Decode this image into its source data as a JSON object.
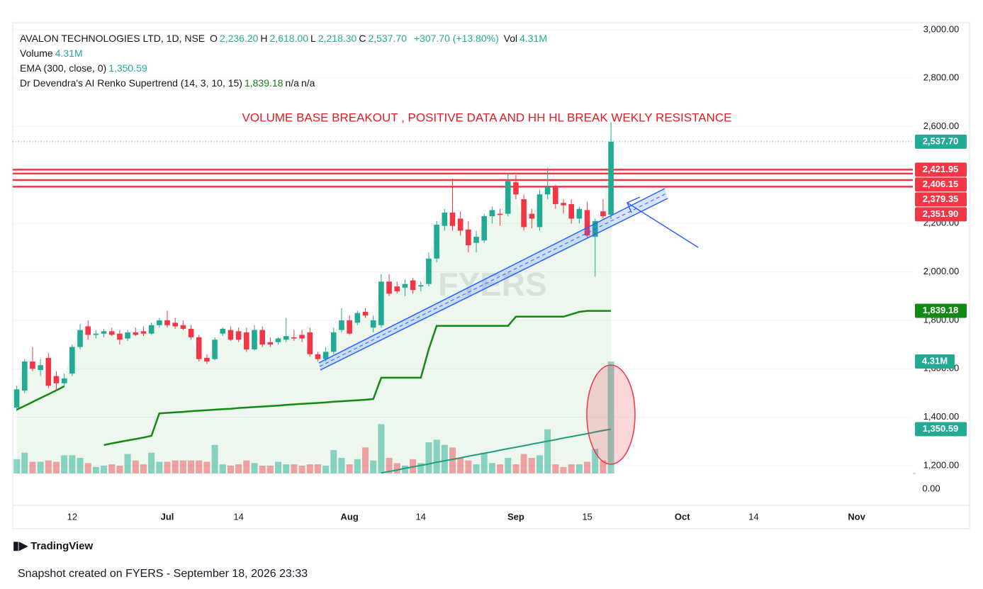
{
  "chart_data": {
    "type": "candlestick",
    "annotation": "VOLUME BASE BREAKOUT , POSITIVE DATA AND HH HL BREAK WEKLY RESISTANCE",
    "watermark": "FYERS",
    "legend": {
      "symbol": "AVALON TECHNOLOGIES LTD, 1D, NSE",
      "ohlc": [
        {
          "key": "O",
          "value": "2,236.20"
        },
        {
          "key": "H",
          "value": "2,618.00"
        },
        {
          "key": "L",
          "value": "2,218.30"
        },
        {
          "key": "C",
          "value": "2,537.70"
        }
      ],
      "change": "+307.70 (+13.80%)",
      "vol_key": "Vol",
      "vol": "4.31M",
      "indicators": [
        {
          "name": "Volume",
          "value": "4.31M",
          "color": "#22ab94"
        },
        {
          "name": "EMA (300, close, 0)",
          "value": "1,350.59",
          "color": "#22ab94"
        },
        {
          "name": "Dr Devendra's AI Renko Supertrend (14, 3, 10, 15)",
          "value": "1,839.18",
          "color": "#1b7a1b",
          "extra": [
            "n/a",
            "n/a"
          ]
        }
      ]
    },
    "categories": [
      null,
      null,
      null,
      null,
      null,
      null,
      null,
      "12",
      null,
      null,
      null,
      null,
      null,
      null,
      null,
      null,
      null,
      null,
      null,
      "Jul",
      null,
      null,
      null,
      null,
      null,
      null,
      null,
      null,
      "14",
      null,
      null,
      null,
      null,
      null,
      null,
      null,
      null,
      null,
      null,
      null,
      null,
      null,
      "Aug",
      null,
      null,
      null,
      null,
      null,
      null,
      null,
      null,
      "14",
      null,
      null,
      null,
      null,
      null,
      null,
      null,
      null,
      null,
      null,
      null,
      "Sep",
      null,
      null,
      null,
      null,
      null,
      null,
      null,
      null,
      "15",
      null,
      null,
      null,
      null,
      null,
      null,
      null,
      null,
      null,
      null,
      null,
      "Oct",
      null,
      null,
      null,
      null,
      null,
      null,
      null,
      null,
      "14",
      null,
      null,
      null,
      null,
      null,
      null,
      null,
      null,
      null,
      null,
      null,
      null,
      "Nov"
    ],
    "open": [
      1440,
      1510,
      1630,
      1595,
      1645,
      1570,
      1540,
      1580,
      1690,
      1775,
      1740,
      1745,
      1755,
      1745,
      1725,
      1750,
      1755,
      1745,
      1780,
      1800,
      1790,
      1780,
      1765,
      1730,
      1645,
      1640,
      1745,
      1760,
      1755,
      1750,
      1680,
      1760,
      1710,
      1710,
      1720,
      1730,
      1740,
      1750,
      1660,
      1640,
      1670,
      1760,
      1800,
      1790,
      1835,
      1770,
      1780,
      1960,
      1940,
      1935,
      1965,
      1940,
      1950,
      2055,
      2190,
      2245,
      2220,
      2175,
      2120,
      2130,
      2230,
      2240,
      2240,
      2370,
      2300,
      2240,
      2185,
      2320,
      2350,
      2285,
      2280,
      2220,
      2255,
      2145,
      2250,
      2236.2,
      null,
      null,
      null,
      null,
      null,
      null,
      null,
      null,
      null,
      null,
      null,
      null,
      null,
      null,
      null,
      null,
      null,
      null,
      null,
      null,
      null,
      null,
      null,
      null,
      null,
      null,
      null,
      null,
      null,
      null,
      null
    ],
    "high": [
      1530,
      1640,
      1690,
      1640,
      1665,
      1590,
      1580,
      1700,
      1785,
      1800,
      1760,
      1765,
      1770,
      1760,
      1760,
      1770,
      1775,
      1790,
      1810,
      1840,
      1810,
      1800,
      1780,
      1740,
      1660,
      1730,
      1770,
      1775,
      1770,
      1770,
      1780,
      1775,
      1730,
      1730,
      1810,
      1760,
      1760,
      1770,
      1670,
      1690,
      1770,
      1850,
      1820,
      1840,
      1850,
      1820,
      1990,
      1990,
      1960,
      1970,
      1975,
      1960,
      2080,
      2210,
      2260,
      2385,
      2250,
      2210,
      2170,
      2240,
      2270,
      2260,
      2410,
      2400,
      2320,
      2260,
      2340,
      2430,
      2360,
      2300,
      2300,
      2270,
      2290,
      2220,
      2300,
      2618,
      null,
      null,
      null,
      null,
      null,
      null,
      null,
      null,
      null,
      null,
      null,
      null,
      null,
      null,
      null,
      null,
      null,
      null,
      null,
      null,
      null,
      null,
      null,
      null,
      null,
      null,
      null,
      null,
      null,
      null,
      null
    ],
    "low": [
      1425,
      1500,
      1590,
      1570,
      1520,
      1510,
      1530,
      1570,
      1680,
      1720,
      1725,
      1730,
      1735,
      1700,
      1715,
      1735,
      1735,
      1740,
      1770,
      1770,
      1765,
      1760,
      1720,
      1630,
      1620,
      1635,
      1735,
      1715,
      1710,
      1670,
      1675,
      1690,
      1690,
      1700,
      1710,
      1715,
      1710,
      1650,
      1630,
      1630,
      1660,
      1750,
      1740,
      1780,
      1810,
      1750,
      1770,
      1900,
      1910,
      1900,
      1910,
      1920,
      1940,
      2040,
      2170,
      2170,
      2150,
      2080,
      2080,
      2120,
      2200,
      2190,
      2230,
      2300,
      2170,
      2180,
      2170,
      2300,
      2260,
      2240,
      2200,
      2200,
      2140,
      1980,
      2220,
      2218.3,
      null,
      null,
      null,
      null,
      null,
      null,
      null,
      null,
      null,
      null,
      null,
      null,
      null,
      null,
      null,
      null,
      null,
      null,
      null,
      null,
      null,
      null,
      null,
      null,
      null,
      null,
      null,
      null,
      null,
      null,
      null
    ],
    "close": [
      1515,
      1630,
      1600,
      1615,
      1530,
      1540,
      1560,
      1690,
      1760,
      1740,
      1745,
      1755,
      1740,
      1720,
      1750,
      1740,
      1745,
      1780,
      1800,
      1780,
      1775,
      1765,
      1730,
      1640,
      1630,
      1720,
      1765,
      1720,
      1720,
      1680,
      1760,
      1700,
      1700,
      1725,
      1735,
      1725,
      1725,
      1660,
      1640,
      1670,
      1750,
      1800,
      1745,
      1830,
      1820,
      1800,
      1960,
      1910,
      1920,
      1950,
      1925,
      1945,
      2055,
      2195,
      2245,
      2190,
      2170,
      2110,
      2145,
      2230,
      2255,
      2235,
      2375,
      2320,
      2185,
      2220,
      2320,
      2350,
      2280,
      2275,
      2220,
      2260,
      2150,
      2210,
      2230,
      2537.7,
      null,
      null,
      null,
      null,
      null,
      null,
      null,
      null,
      null,
      null,
      null,
      null,
      null,
      null,
      null,
      null,
      null,
      null,
      null,
      null,
      null,
      null,
      null,
      null,
      null,
      null,
      null,
      null,
      null,
      null,
      null
    ],
    "volume": [
      550000,
      800000,
      450000,
      450000,
      500000,
      450000,
      700000,
      700000,
      600000,
      400000,
      250000,
      300000,
      350000,
      300000,
      750000,
      500000,
      350000,
      800000,
      450000,
      450000,
      500000,
      500000,
      500000,
      500000,
      450000,
      1100000,
      350000,
      300000,
      350000,
      500000,
      400000,
      300000,
      300000,
      450000,
      350000,
      350000,
      300000,
      350000,
      350000,
      300000,
      900000,
      600000,
      350000,
      550000,
      1000000,
      500000,
      1900000,
      600000,
      400000,
      300000,
      550000,
      400000,
      1200000,
      1300000,
      1100000,
      1000000,
      600000,
      500000,
      350000,
      800000,
      400000,
      350000,
      600000,
      350000,
      750000,
      600000,
      700000,
      1700000,
      350000,
      250000,
      350000,
      350000,
      450000,
      950000,
      500000,
      4310000,
      null,
      null,
      null,
      null,
      null,
      null,
      null,
      null,
      null,
      null,
      null,
      null,
      null,
      null,
      null,
      null,
      null,
      null,
      null,
      null,
      null,
      null,
      null,
      null,
      null,
      null,
      null,
      null,
      null,
      null,
      null
    ],
    "ema": [
      null,
      null,
      null,
      null,
      null,
      null,
      null,
      null,
      null,
      null,
      null,
      null,
      null,
      null,
      null,
      null,
      null,
      null,
      null,
      null,
      null,
      null,
      null,
      null,
      null,
      null,
      null,
      null,
      null,
      null,
      null,
      null,
      null,
      null,
      null,
      null,
      null,
      null,
      null,
      null,
      null,
      null,
      null,
      null,
      null,
      null,
      1170,
      1176,
      1182,
      1189,
      1195,
      1201,
      1207,
      1214,
      1220,
      1226,
      1232,
      1239,
      1245,
      1251,
      1257,
      1264,
      1270,
      1276,
      1282,
      1289,
      1295,
      1301,
      1307,
      1314,
      1320,
      1326,
      1332,
      1339,
      1345,
      1350.59,
      null,
      null,
      null,
      null,
      null,
      null,
      null,
      null,
      null,
      null,
      null,
      null,
      null,
      null,
      null,
      null,
      null,
      null,
      null,
      null,
      null,
      null,
      null,
      null,
      null,
      null,
      null,
      null,
      null,
      null,
      null
    ],
    "supertrend": [
      1431,
      1447,
      1463,
      1479,
      1495,
      1511,
      1528,
      null,
      null,
      null,
      null,
      1285,
      1292,
      1298,
      1304,
      1310,
      1316,
      1323,
      1416,
      1418,
      1420,
      1422,
      1425,
      1427,
      1429,
      1431,
      1433,
      1435,
      1438,
      1440,
      1442,
      1444,
      1446,
      1448,
      1451,
      1453,
      1455,
      1457,
      1459,
      1461,
      1464,
      1466,
      1468,
      1470,
      1472,
      1475,
      1563,
      1563,
      1563,
      1563,
      1563,
      1563,
      1680,
      1777,
      1777,
      1777,
      1777,
      1777,
      1777,
      1777,
      1777,
      1777,
      1777,
      1815,
      1815,
      1815,
      1815,
      1815,
      1815,
      1815,
      1825,
      1835,
      1839.18,
      1839.18,
      1839.18,
      1839.18,
      null,
      null,
      null,
      null,
      null,
      null,
      null,
      null,
      null,
      null,
      null,
      null,
      null,
      null,
      null,
      null,
      null,
      null,
      null,
      null,
      null,
      null,
      null,
      null,
      null,
      null,
      null,
      null,
      null,
      null,
      null
    ],
    "up_color": "#22ab94",
    "down_color": "#f23645",
    "ema_color": "#1e9e84",
    "supertrend_color": "#138a13",
    "ylim": [
      1036,
      3029
    ],
    "yticks": [
      {
        "value": 3000,
        "label": "3,000.00"
      },
      {
        "value": 2800,
        "label": "2,800.00"
      },
      {
        "value": 2600,
        "label": "2,600.00"
      },
      {
        "value": 2200,
        "label": "2,200.00"
      },
      {
        "value": 2000,
        "label": "2,000.00"
      },
      {
        "value": 1800,
        "label": "1,800.00"
      },
      {
        "value": 1600,
        "label": "1,600.00"
      },
      {
        "value": 1400,
        "label": "1,400.00"
      },
      {
        "value": 1200,
        "label": "1,200.00"
      }
    ],
    "vlim": [
      0,
      4310000
    ],
    "volume_ticks": [
      {
        "value": 0,
        "label": "0.00"
      }
    ],
    "grid": true,
    "price_lines": [
      {
        "value": 2421.95,
        "label": "2,421.95"
      },
      {
        "value": 2406.15,
        "label": "2,406.15"
      },
      {
        "value": 2379.35,
        "label": "2,379.35"
      },
      {
        "value": 2351.9,
        "label": "2,351.90"
      }
    ],
    "price_line_color": "#f23645",
    "badges": [
      {
        "value": 2537.7,
        "label": "2,537.70",
        "color": "#22ab94"
      },
      {
        "value": 1839.18,
        "label": "1,839.18",
        "color": "#138a13"
      },
      {
        "value": 1350.59,
        "label": "1,350.59",
        "color": "#22ab94"
      }
    ],
    "volume_badge": {
      "value": 4310000,
      "label": "4.31M",
      "color": "#22ab94"
    }
  },
  "footer": {
    "brand": "TradingView",
    "snapshot": "Snapshot created on FYERS - September 18, 2026 23:33"
  }
}
